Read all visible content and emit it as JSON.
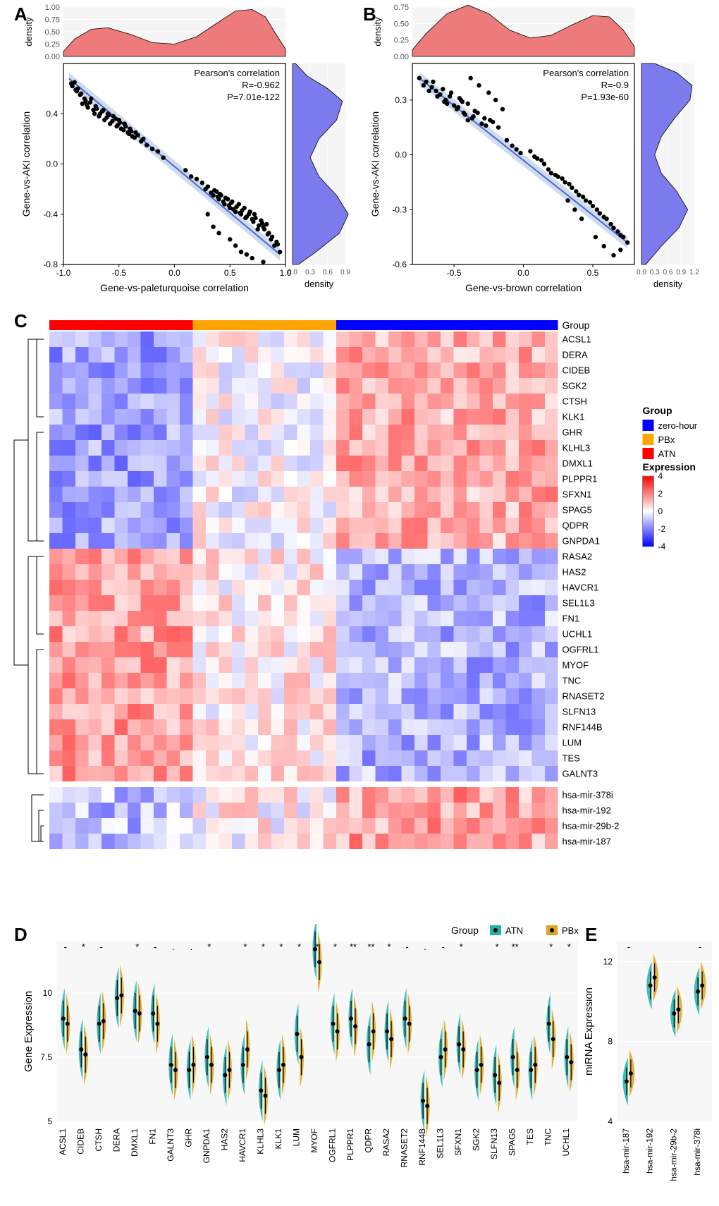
{
  "panelA": {
    "label": "A",
    "annotation": "Pearson's correlation\nR=-0.962\nP=7.01e-122",
    "xlabel": "Gene-vs-paleturquoise correlation",
    "ylabel": "Gene-vs-AKI correlation",
    "xlim": [
      -1.0,
      1.0
    ],
    "ylim": [
      -0.8,
      0.8
    ],
    "xticks": [
      -1.0,
      -0.5,
      0.0,
      0.5,
      1.0
    ],
    "yticks": [
      -0.8,
      -0.4,
      0.0,
      0.4
    ],
    "top_density_yticks": [
      0.0,
      0.25,
      0.5,
      0.75,
      1.0
    ],
    "right_density_xticks": [
      0.0,
      0.3,
      0.6,
      0.9
    ],
    "density_label": "density",
    "colors": {
      "line": "#4169E1",
      "line_ci": "#B0C4DE",
      "point": "#000000",
      "top_density_fill": "#ED7B7B",
      "right_density_fill": "#7B7BED",
      "grid": "#EEEEEE",
      "panel_bg": "#F5F5F5",
      "border": "#000000"
    },
    "fit_line": [
      [
        -0.95,
        0.68
      ],
      [
        0.95,
        -0.72
      ]
    ],
    "points": [
      [
        -0.92,
        0.62
      ],
      [
        -0.88,
        0.58
      ],
      [
        -0.85,
        0.55
      ],
      [
        -0.83,
        0.48
      ],
      [
        -0.8,
        0.5
      ],
      [
        -0.78,
        0.45
      ],
      [
        -0.75,
        0.52
      ],
      [
        -0.72,
        0.4
      ],
      [
        -0.7,
        0.44
      ],
      [
        -0.68,
        0.38
      ],
      [
        -0.65,
        0.42
      ],
      [
        -0.63,
        0.35
      ],
      [
        -0.6,
        0.4
      ],
      [
        -0.58,
        0.32
      ],
      [
        -0.55,
        0.38
      ],
      [
        -0.52,
        0.3
      ],
      [
        -0.5,
        0.35
      ],
      [
        -0.48,
        0.28
      ],
      [
        -0.45,
        0.32
      ],
      [
        -0.42,
        0.25
      ],
      [
        -0.4,
        0.28
      ],
      [
        -0.38,
        0.22
      ],
      [
        -0.35,
        0.25
      ],
      [
        -0.9,
        0.65
      ],
      [
        -0.87,
        0.6
      ],
      [
        -0.84,
        0.56
      ],
      [
        -0.81,
        0.52
      ],
      [
        -0.79,
        0.47
      ],
      [
        -0.76,
        0.49
      ],
      [
        -0.73,
        0.43
      ],
      [
        -0.71,
        0.46
      ],
      [
        -0.67,
        0.4
      ],
      [
        -0.64,
        0.43
      ],
      [
        -0.61,
        0.37
      ],
      [
        -0.59,
        0.39
      ],
      [
        -0.56,
        0.34
      ],
      [
        -0.53,
        0.36
      ],
      [
        -0.51,
        0.31
      ],
      [
        -0.49,
        0.33
      ],
      [
        -0.46,
        0.27
      ],
      [
        -0.44,
        0.3
      ],
      [
        -0.41,
        0.24
      ],
      [
        -0.39,
        0.26
      ],
      [
        -0.36,
        0.21
      ],
      [
        -0.33,
        0.23
      ],
      [
        -0.3,
        0.18
      ],
      [
        -0.28,
        0.2
      ],
      [
        -0.25,
        0.15
      ],
      [
        -0.93,
        0.64
      ],
      [
        -0.89,
        0.59
      ],
      [
        0.25,
        -0.15
      ],
      [
        0.28,
        -0.2
      ],
      [
        0.3,
        -0.18
      ],
      [
        0.33,
        -0.23
      ],
      [
        0.36,
        -0.21
      ],
      [
        0.39,
        -0.26
      ],
      [
        0.41,
        -0.24
      ],
      [
        0.44,
        -0.3
      ],
      [
        0.46,
        -0.27
      ],
      [
        0.49,
        -0.33
      ],
      [
        0.51,
        -0.31
      ],
      [
        0.53,
        -0.36
      ],
      [
        0.56,
        -0.34
      ],
      [
        0.59,
        -0.39
      ],
      [
        0.61,
        -0.37
      ],
      [
        0.64,
        -0.43
      ],
      [
        0.67,
        -0.4
      ],
      [
        0.71,
        -0.46
      ],
      [
        0.73,
        -0.43
      ],
      [
        0.76,
        -0.49
      ],
      [
        0.79,
        -0.47
      ],
      [
        0.81,
        -0.52
      ],
      [
        0.84,
        -0.56
      ],
      [
        0.87,
        -0.6
      ],
      [
        0.9,
        -0.65
      ],
      [
        0.93,
        -0.64
      ],
      [
        0.88,
        -0.58
      ],
      [
        0.85,
        -0.55
      ],
      [
        0.83,
        -0.48
      ],
      [
        0.8,
        -0.5
      ],
      [
        0.78,
        -0.45
      ],
      [
        0.75,
        -0.52
      ],
      [
        0.72,
        -0.4
      ],
      [
        0.7,
        -0.44
      ],
      [
        0.68,
        -0.38
      ],
      [
        0.65,
        -0.42
      ],
      [
        0.63,
        -0.35
      ],
      [
        0.6,
        -0.4
      ],
      [
        0.58,
        -0.32
      ],
      [
        0.55,
        -0.38
      ],
      [
        0.52,
        -0.3
      ],
      [
        0.5,
        -0.35
      ],
      [
        0.48,
        -0.28
      ],
      [
        0.45,
        -0.32
      ],
      [
        0.42,
        -0.25
      ],
      [
        0.4,
        -0.28
      ],
      [
        0.38,
        -0.22
      ],
      [
        0.35,
        -0.25
      ],
      [
        0.95,
        -0.7
      ],
      [
        0.92,
        -0.62
      ],
      [
        0.3,
        -0.4
      ],
      [
        0.35,
        -0.5
      ],
      [
        0.4,
        -0.55
      ],
      [
        0.5,
        -0.6
      ],
      [
        0.55,
        -0.65
      ],
      [
        0.6,
        -0.7
      ],
      [
        0.65,
        -0.72
      ],
      [
        0.7,
        -0.75
      ],
      [
        0.8,
        -0.78
      ],
      [
        0.2,
        -0.12
      ],
      [
        -0.2,
        0.12
      ],
      [
        -0.15,
        0.1
      ],
      [
        0.15,
        -0.1
      ],
      [
        0.1,
        -0.05
      ],
      [
        -0.1,
        0.05
      ]
    ],
    "top_density_path": [
      [
        -1.0,
        0.1
      ],
      [
        -0.9,
        0.35
      ],
      [
        -0.75,
        0.55
      ],
      [
        -0.6,
        0.58
      ],
      [
        -0.4,
        0.45
      ],
      [
        -0.2,
        0.28
      ],
      [
        0.0,
        0.25
      ],
      [
        0.2,
        0.4
      ],
      [
        0.4,
        0.7
      ],
      [
        0.55,
        0.92
      ],
      [
        0.7,
        0.95
      ],
      [
        0.82,
        0.8
      ],
      [
        0.9,
        0.5
      ],
      [
        1.0,
        0.15
      ]
    ],
    "right_density_path": [
      [
        -0.8,
        0.1
      ],
      [
        -0.7,
        0.4
      ],
      [
        -0.55,
        0.8
      ],
      [
        -0.4,
        0.95
      ],
      [
        -0.25,
        0.75
      ],
      [
        -0.1,
        0.45
      ],
      [
        0.05,
        0.3
      ],
      [
        0.2,
        0.45
      ],
      [
        0.35,
        0.75
      ],
      [
        0.5,
        0.85
      ],
      [
        0.6,
        0.6
      ],
      [
        0.7,
        0.25
      ],
      [
        0.8,
        0.05
      ]
    ]
  },
  "panelB": {
    "label": "B",
    "annotation": "Pearson's correlation\nR=-0.9\nP=1.93e-60",
    "xlabel": "Gene-vs-brown correlation",
    "ylabel": "Gene-vs-AKI correlation",
    "xlim": [
      -0.8,
      0.8
    ],
    "ylim": [
      -0.6,
      0.5
    ],
    "xticks": [
      -0.5,
      0.0,
      0.5
    ],
    "yticks": [
      -0.6,
      -0.3,
      0.0,
      0.3
    ],
    "top_density_yticks": [
      0.0,
      0.25,
      0.5,
      0.75
    ],
    "right_density_xticks": [
      0.0,
      0.3,
      0.6,
      0.9,
      1.2
    ],
    "density_label": "density",
    "colors": {
      "line": "#4169E1",
      "line_ci": "#B0C4DE",
      "point": "#000000",
      "top_density_fill": "#ED7B7B",
      "right_density_fill": "#7B7BED",
      "grid": "#EEEEEE",
      "panel_bg": "#F5F5F5",
      "border": "#000000"
    },
    "fit_line": [
      [
        -0.75,
        0.42
      ],
      [
        0.75,
        -0.48
      ]
    ],
    "points": [
      [
        -0.72,
        0.38
      ],
      [
        -0.68,
        0.35
      ],
      [
        -0.65,
        0.4
      ],
      [
        -0.62,
        0.32
      ],
      [
        -0.58,
        0.36
      ],
      [
        -0.55,
        0.28
      ],
      [
        -0.52,
        0.34
      ],
      [
        -0.48,
        0.25
      ],
      [
        -0.45,
        0.3
      ],
      [
        -0.42,
        0.22
      ],
      [
        -0.4,
        0.28
      ],
      [
        -0.38,
        0.42
      ],
      [
        -0.35,
        0.24
      ],
      [
        -0.32,
        0.38
      ],
      [
        -0.28,
        0.2
      ],
      [
        -0.25,
        0.34
      ],
      [
        -0.22,
        0.18
      ],
      [
        -0.2,
        0.3
      ],
      [
        -0.18,
        0.15
      ],
      [
        -0.15,
        0.25
      ],
      [
        -0.7,
        0.4
      ],
      [
        -0.66,
        0.37
      ],
      [
        -0.6,
        0.33
      ],
      [
        -0.56,
        0.3
      ],
      [
        -0.5,
        0.27
      ],
      [
        -0.46,
        0.31
      ],
      [
        -0.43,
        0.23
      ],
      [
        -0.4,
        0.19
      ],
      [
        -0.36,
        0.21
      ],
      [
        -0.3,
        0.17
      ],
      [
        -0.75,
        0.42
      ],
      [
        -0.63,
        0.35
      ],
      [
        -0.57,
        0.29
      ],
      [
        -0.53,
        0.32
      ],
      [
        -0.47,
        0.26
      ],
      [
        -0.44,
        0.29
      ],
      [
        -0.37,
        0.2
      ],
      [
        -0.33,
        0.23
      ],
      [
        -0.27,
        0.16
      ],
      [
        -0.24,
        0.19
      ],
      [
        0.1,
        -0.02
      ],
      [
        0.15,
        -0.05
      ],
      [
        0.2,
        -0.1
      ],
      [
        0.25,
        -0.12
      ],
      [
        0.3,
        -0.15
      ],
      [
        0.35,
        -0.18
      ],
      [
        0.4,
        -0.22
      ],
      [
        0.45,
        -0.25
      ],
      [
        0.5,
        -0.28
      ],
      [
        0.55,
        -0.32
      ],
      [
        0.6,
        -0.35
      ],
      [
        0.65,
        -0.4
      ],
      [
        0.7,
        -0.44
      ],
      [
        0.75,
        -0.48
      ],
      [
        0.72,
        -0.45
      ],
      [
        0.68,
        -0.42
      ],
      [
        0.63,
        -0.38
      ],
      [
        0.58,
        -0.34
      ],
      [
        0.53,
        -0.3
      ],
      [
        0.48,
        -0.26
      ],
      [
        0.43,
        -0.23
      ],
      [
        0.38,
        -0.2
      ],
      [
        0.33,
        -0.16
      ],
      [
        0.28,
        -0.13
      ],
      [
        0.23,
        -0.11
      ],
      [
        0.18,
        -0.08
      ],
      [
        0.13,
        -0.03
      ],
      [
        0.52,
        -0.45
      ],
      [
        0.58,
        -0.5
      ],
      [
        0.65,
        -0.55
      ],
      [
        0.7,
        -0.52
      ],
      [
        0.42,
        -0.35
      ],
      [
        0.37,
        -0.3
      ],
      [
        0.32,
        -0.25
      ],
      [
        -0.12,
        0.08
      ],
      [
        -0.08,
        0.05
      ],
      [
        0.05,
        0.02
      ],
      [
        0.08,
        -0.01
      ],
      [
        -0.05,
        0.03
      ],
      [
        -0.02,
        0.01
      ]
    ],
    "top_density_path": [
      [
        -0.8,
        0.1
      ],
      [
        -0.7,
        0.35
      ],
      [
        -0.55,
        0.65
      ],
      [
        -0.4,
        0.78
      ],
      [
        -0.25,
        0.65
      ],
      [
        -0.1,
        0.4
      ],
      [
        0.05,
        0.28
      ],
      [
        0.2,
        0.32
      ],
      [
        0.35,
        0.48
      ],
      [
        0.5,
        0.62
      ],
      [
        0.62,
        0.6
      ],
      [
        0.72,
        0.4
      ],
      [
        0.8,
        0.15
      ]
    ],
    "right_density_path": [
      [
        -0.6,
        0.1
      ],
      [
        -0.5,
        0.45
      ],
      [
        -0.4,
        0.85
      ],
      [
        -0.3,
        1.05
      ],
      [
        -0.2,
        0.8
      ],
      [
        -0.1,
        0.45
      ],
      [
        0.0,
        0.3
      ],
      [
        0.1,
        0.45
      ],
      [
        0.2,
        0.75
      ],
      [
        0.3,
        1.1
      ],
      [
        0.38,
        1.15
      ],
      [
        0.45,
        0.8
      ],
      [
        0.5,
        0.3
      ]
    ]
  },
  "panelC": {
    "label": "C",
    "group_label": "Group",
    "expression_label": "Expression",
    "group_legend": [
      {
        "name": "zero-hour",
        "color": "#0000FF"
      },
      {
        "name": "PBx",
        "color": "#FFA500"
      },
      {
        "name": "ATN",
        "color": "#FF0000"
      }
    ],
    "expression_scale": {
      "min": -4,
      "mid": 0,
      "max": 4,
      "low_color": "#0000FF",
      "mid_color": "#FFFFFF",
      "high_color": "#FF0000",
      "ticks": [
        4,
        2,
        0,
        -2,
        -4
      ]
    },
    "n_cols": 39,
    "group_bar": [
      0,
      0,
      0,
      0,
      0,
      0,
      0,
      0,
      0,
      0,
      0,
      1,
      1,
      1,
      1,
      1,
      1,
      1,
      1,
      1,
      1,
      1,
      2,
      2,
      2,
      2,
      2,
      2,
      2,
      2,
      2,
      2,
      2,
      2,
      2,
      2,
      2,
      2,
      2
    ],
    "group_colors": [
      "#FF0000",
      "#FFA500",
      "#0000FF"
    ],
    "rows": [
      "ACSL1",
      "DERA",
      "CIDEB",
      "SGK2",
      "CTSH",
      "KLK1",
      "GHR",
      "KLHL3",
      "DMXL1",
      "PLPPR1",
      "SFXN1",
      "SPAG5",
      "QDPR",
      "GNPDA1",
      "RASA2",
      "HAS2",
      "HAVCR1",
      "SEL1L3",
      "FN1",
      "UCHL1",
      "OGFRL1",
      "MYOF",
      "TNC",
      "RNASET2",
      "SLFN13",
      "RNF144B",
      "LUM",
      "TES",
      "GALNT3"
    ],
    "mirna_rows": [
      "hsa-mir-378i",
      "hsa-mir-192",
      "hsa-mir-29b-2",
      "hsa-mir-187"
    ],
    "seed": 42
  },
  "panelD": {
    "label": "D",
    "ylabel": "Gene Expression",
    "ylim": [
      5,
      12
    ],
    "yticks": [
      5,
      7.5,
      10
    ],
    "colors": {
      "ATN": "#20B2AA",
      "PBx": "#DAA520"
    },
    "group_legend_label": "Group",
    "legend": [
      {
        "name": "ATN",
        "color": "#20B2AA"
      },
      {
        "name": "PBx",
        "color": "#DAA520"
      }
    ],
    "genes": [
      "ACSL1",
      "CIDEB",
      "CTSH",
      "DERA",
      "DMXL1",
      "FN1",
      "GALNT3",
      "GHR",
      "GNPDA1",
      "HAS2",
      "HAVCR1",
      "KLHL3",
      "KLK1",
      "LUM",
      "MYOF",
      "OGFRL1",
      "PLPPR1",
      "QDPR",
      "RASA2",
      "RNASET2",
      "RNF144B",
      "SEL1L3",
      "SFXN1",
      "SGK2",
      "SLFN13",
      "SPAG5",
      "TES",
      "TNC",
      "UCHL1"
    ],
    "sig": [
      "-",
      "*",
      "-",
      "",
      "*",
      "-",
      ".",
      ".",
      "*",
      "",
      "*",
      "*",
      "*",
      "*",
      "*",
      "*",
      "**",
      "**",
      "*",
      "-",
      ".",
      "-",
      "*",
      "",
      "*",
      "**",
      "",
      "*",
      "*"
    ],
    "values_atn": [
      9.0,
      7.8,
      8.8,
      9.8,
      9.3,
      9.2,
      7.2,
      7.0,
      7.5,
      6.8,
      7.2,
      6.2,
      7.0,
      8.4,
      11.7,
      8.8,
      9.0,
      8.0,
      8.5,
      9.0,
      5.8,
      7.5,
      8.0,
      7.0,
      6.8,
      7.5,
      7.0,
      8.8,
      7.5
    ],
    "values_pbx": [
      8.8,
      7.6,
      8.9,
      9.9,
      9.2,
      8.8,
      7.0,
      7.2,
      7.2,
      7.0,
      7.8,
      6.0,
      7.2,
      7.5,
      11.2,
      8.5,
      8.7,
      8.5,
      8.2,
      8.8,
      5.6,
      7.8,
      7.8,
      7.2,
      6.5,
      7.0,
      7.2,
      8.2,
      7.3
    ]
  },
  "panelE": {
    "label": "E",
    "ylabel": "miRNA Expression",
    "ylim": [
      4,
      13
    ],
    "yticks": [
      4,
      8,
      12
    ],
    "colors": {
      "ATN": "#20B2AA",
      "PBx": "#DAA520"
    },
    "mirnas": [
      "hsa-mir-187",
      "hsa-mir-192",
      "hsa-mir-29b-2",
      "hsa-mir-378i"
    ],
    "sig": [
      "-",
      "",
      "",
      "-"
    ],
    "values_atn": [
      6.0,
      10.8,
      9.4,
      10.5
    ],
    "values_pbx": [
      6.4,
      11.2,
      9.6,
      10.8
    ]
  }
}
